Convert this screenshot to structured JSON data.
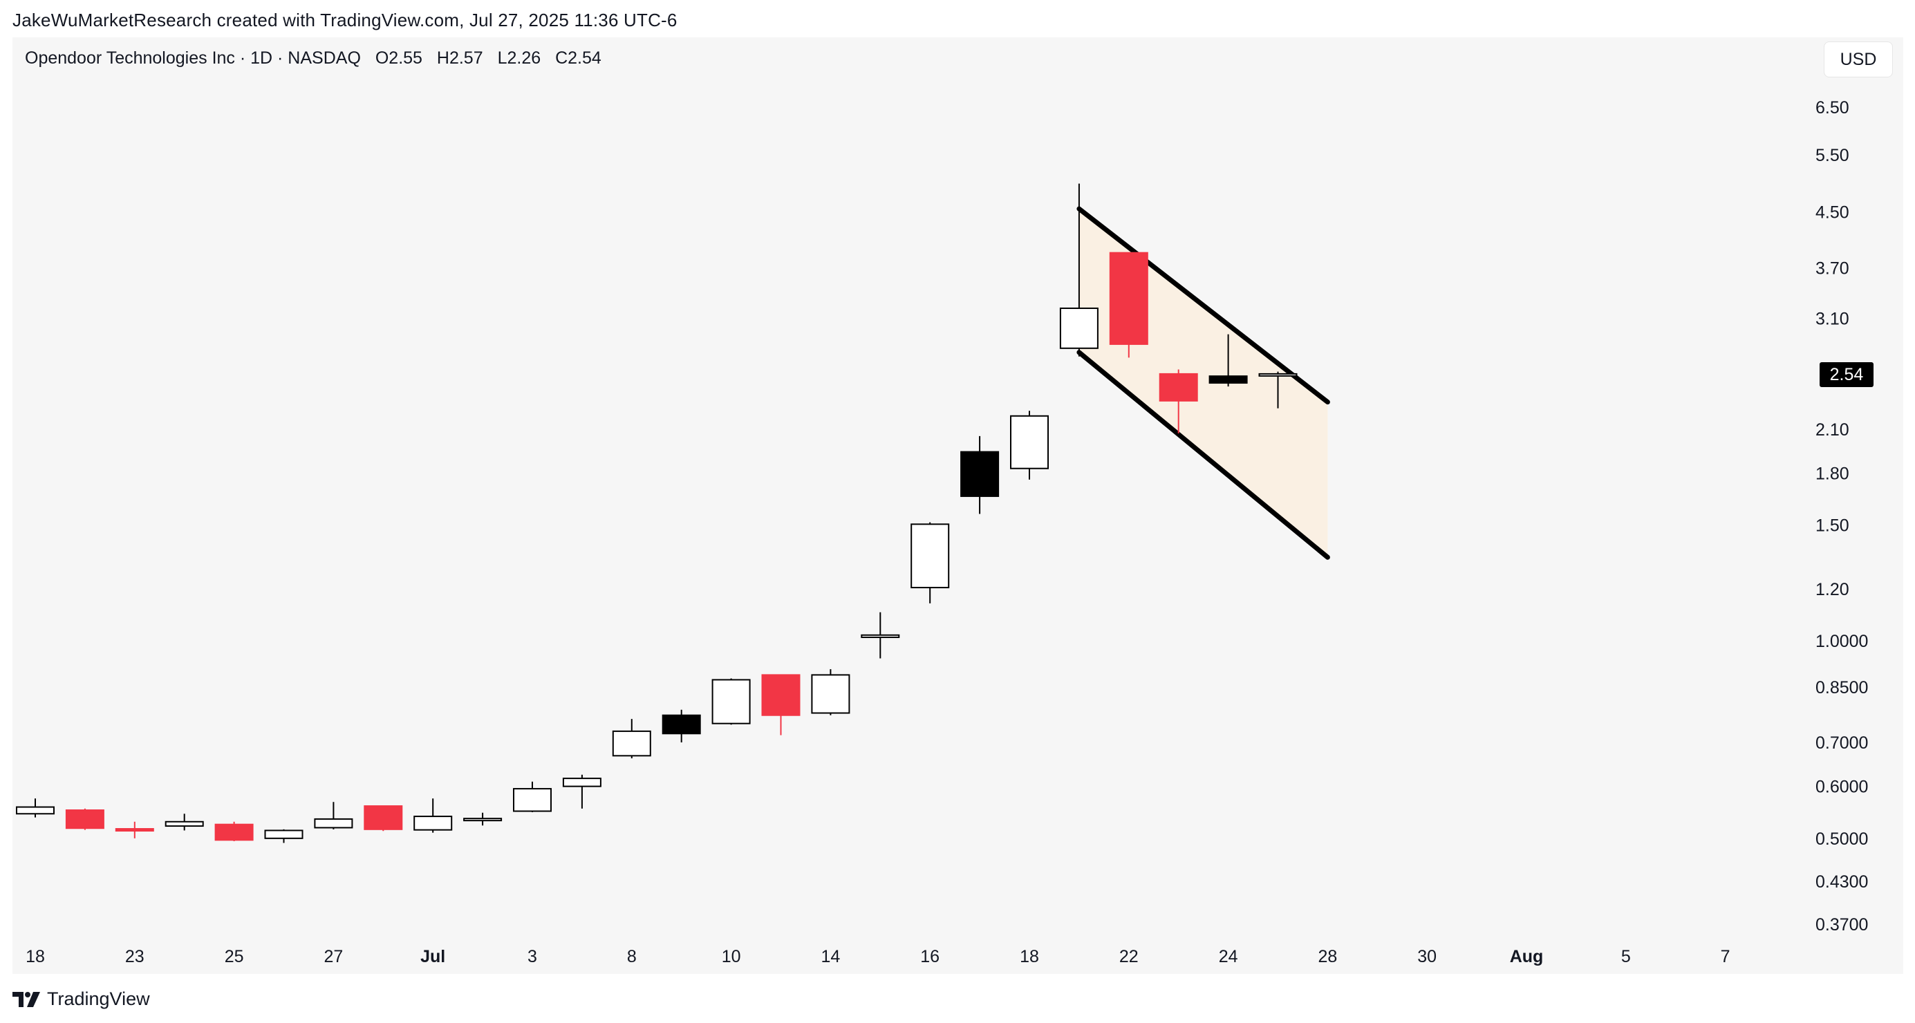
{
  "header": {
    "caption": "JakeWuMarketResearch created with TradingView.com, Jul 27, 2025 11:36 UTC-6"
  },
  "legend": {
    "symbol": "Opendoor Technologies Inc · 1D · NASDAQ",
    "open": "O2.55",
    "high": "H2.57",
    "low": "L2.26",
    "close": "C2.54"
  },
  "currency": "USD",
  "last_price_label": "2.54",
  "footer": {
    "brand": "TradingView"
  },
  "colors": {
    "up_body": "#ffffff",
    "down_body": "#f23645",
    "black_body": "#000000",
    "outline": "#000000",
    "channel_fill": "#faf0e3",
    "panel_bg": "#f6f6f6"
  },
  "chart_data": {
    "type": "candlestick",
    "title": "Opendoor Technologies Inc · 1D · NASDAQ",
    "y_scale": "log",
    "y_ticks": [
      "6.50",
      "5.50",
      "4.50",
      "3.70",
      "3.10",
      "2.10",
      "1.80",
      "1.50",
      "1.20",
      "1.0000",
      "0.8500",
      "0.7000",
      "0.6000",
      "0.5000",
      "0.4300",
      "0.3700"
    ],
    "x_ticks": [
      {
        "label": "18",
        "index": 0
      },
      {
        "label": "23",
        "index": 2
      },
      {
        "label": "25",
        "index": 4
      },
      {
        "label": "27",
        "index": 6
      },
      {
        "label": "Jul",
        "index": 8,
        "bold": true
      },
      {
        "label": "3",
        "index": 10
      },
      {
        "label": "8",
        "index": 12
      },
      {
        "label": "10",
        "index": 14
      },
      {
        "label": "14",
        "index": 16
      },
      {
        "label": "16",
        "index": 18
      },
      {
        "label": "18",
        "index": 20
      },
      {
        "label": "22",
        "index": 22
      },
      {
        "label": "24",
        "index": 24
      },
      {
        "label": "28",
        "index": 26
      },
      {
        "label": "30",
        "index": 28
      },
      {
        "label": "Aug",
        "index": 30,
        "bold": true
      },
      {
        "label": "5",
        "index": 32
      },
      {
        "label": "7",
        "index": 34
      }
    ],
    "candles": [
      {
        "i": 0,
        "o": 0.545,
        "h": 0.575,
        "l": 0.538,
        "c": 0.558,
        "color": "up"
      },
      {
        "i": 1,
        "o": 0.552,
        "h": 0.555,
        "l": 0.515,
        "c": 0.518,
        "color": "down"
      },
      {
        "i": 2,
        "o": 0.517,
        "h": 0.53,
        "l": 0.5,
        "c": 0.515,
        "color": "down"
      },
      {
        "i": 3,
        "o": 0.522,
        "h": 0.545,
        "l": 0.514,
        "c": 0.53,
        "color": "up"
      },
      {
        "i": 4,
        "o": 0.525,
        "h": 0.53,
        "l": 0.495,
        "c": 0.497,
        "color": "down"
      },
      {
        "i": 5,
        "o": 0.5,
        "h": 0.516,
        "l": 0.492,
        "c": 0.514,
        "color": "up"
      },
      {
        "i": 6,
        "o": 0.519,
        "h": 0.568,
        "l": 0.516,
        "c": 0.535,
        "color": "up"
      },
      {
        "i": 7,
        "o": 0.56,
        "h": 0.56,
        "l": 0.513,
        "c": 0.516,
        "color": "down"
      },
      {
        "i": 8,
        "o": 0.515,
        "h": 0.575,
        "l": 0.51,
        "c": 0.54,
        "color": "up"
      },
      {
        "i": 9,
        "o": 0.535,
        "h": 0.547,
        "l": 0.523,
        "c": 0.536,
        "color": "up"
      },
      {
        "i": 10,
        "o": 0.55,
        "h": 0.61,
        "l": 0.548,
        "c": 0.595,
        "color": "up"
      },
      {
        "i": 11,
        "o": 0.6,
        "h": 0.625,
        "l": 0.555,
        "c": 0.617,
        "color": "up"
      },
      {
        "i": 12,
        "o": 0.668,
        "h": 0.76,
        "l": 0.662,
        "c": 0.728,
        "color": "up"
      },
      {
        "i": 13,
        "o": 0.722,
        "h": 0.785,
        "l": 0.7,
        "c": 0.77,
        "color": "black"
      },
      {
        "i": 14,
        "o": 0.748,
        "h": 0.876,
        "l": 0.745,
        "c": 0.872,
        "color": "up"
      },
      {
        "i": 15,
        "o": 0.887,
        "h": 0.887,
        "l": 0.718,
        "c": 0.77,
        "color": "down"
      },
      {
        "i": 16,
        "o": 0.776,
        "h": 0.905,
        "l": 0.77,
        "c": 0.887,
        "color": "up"
      },
      {
        "i": 17,
        "o": 1.012,
        "h": 1.105,
        "l": 0.94,
        "c": 1.02,
        "color": "up"
      },
      {
        "i": 18,
        "o": 1.205,
        "h": 1.515,
        "l": 1.14,
        "c": 1.505,
        "color": "up"
      },
      {
        "i": 19,
        "o": 1.66,
        "h": 2.05,
        "l": 1.56,
        "c": 1.94,
        "color": "black"
      },
      {
        "i": 20,
        "o": 1.83,
        "h": 2.24,
        "l": 1.76,
        "c": 2.2,
        "color": "up"
      },
      {
        "i": 21,
        "o": 2.79,
        "h": 4.97,
        "l": 2.71,
        "c": 3.21,
        "color": "up"
      },
      {
        "i": 22,
        "o": 3.9,
        "h": 3.9,
        "l": 2.7,
        "c": 2.83,
        "color": "down"
      },
      {
        "i": 23,
        "o": 2.55,
        "h": 2.59,
        "l": 2.07,
        "c": 2.32,
        "color": "down"
      },
      {
        "i": 24,
        "o": 2.53,
        "h": 2.93,
        "l": 2.44,
        "c": 2.47,
        "color": "black"
      },
      {
        "i": 25,
        "o": 2.55,
        "h": 2.57,
        "l": 2.26,
        "c": 2.54,
        "color": "up"
      }
    ],
    "channel": {
      "upper": [
        {
          "i": 21,
          "price": 4.55
        },
        {
          "i": 26,
          "price": 2.31
        }
      ],
      "lower": [
        {
          "i": 21,
          "price": 2.75
        },
        {
          "i": 26,
          "price": 1.34
        }
      ]
    }
  }
}
